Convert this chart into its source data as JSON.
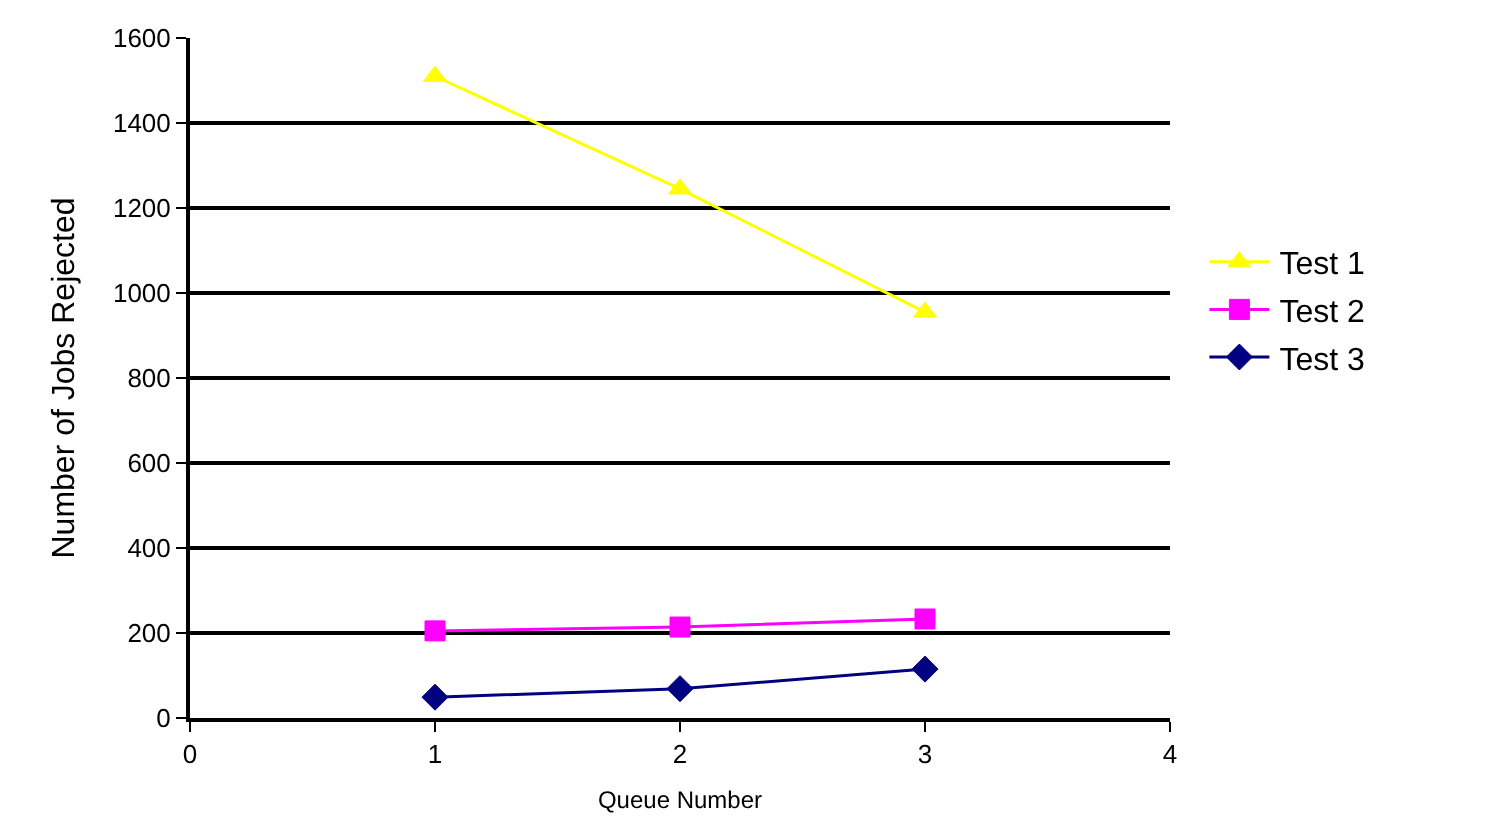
{
  "chart_data": {
    "type": "line",
    "xlabel": "Queue Number",
    "ylabel": "Number of Jobs Rejected",
    "x": [
      1,
      2,
      3
    ],
    "series": [
      {
        "name": "Test 1",
        "color": "#ffff00",
        "marker": "triangle",
        "values": [
          1510,
          1245,
          955
        ]
      },
      {
        "name": "Test 2",
        "color": "#ff00ff",
        "marker": "square",
        "values": [
          205,
          214,
          233
        ]
      },
      {
        "name": "Test 3",
        "color": "#000080",
        "marker": "diamond",
        "values": [
          49,
          69,
          115
        ]
      }
    ],
    "xlim": [
      0,
      4
    ],
    "xticks": [
      0,
      1,
      2,
      3,
      4
    ],
    "ylim": [
      0,
      1600
    ],
    "yticks": [
      0,
      200,
      400,
      600,
      800,
      1000,
      1200,
      1400,
      1600
    ],
    "grid": "y",
    "legend": "right",
    "line_style": "solid"
  }
}
